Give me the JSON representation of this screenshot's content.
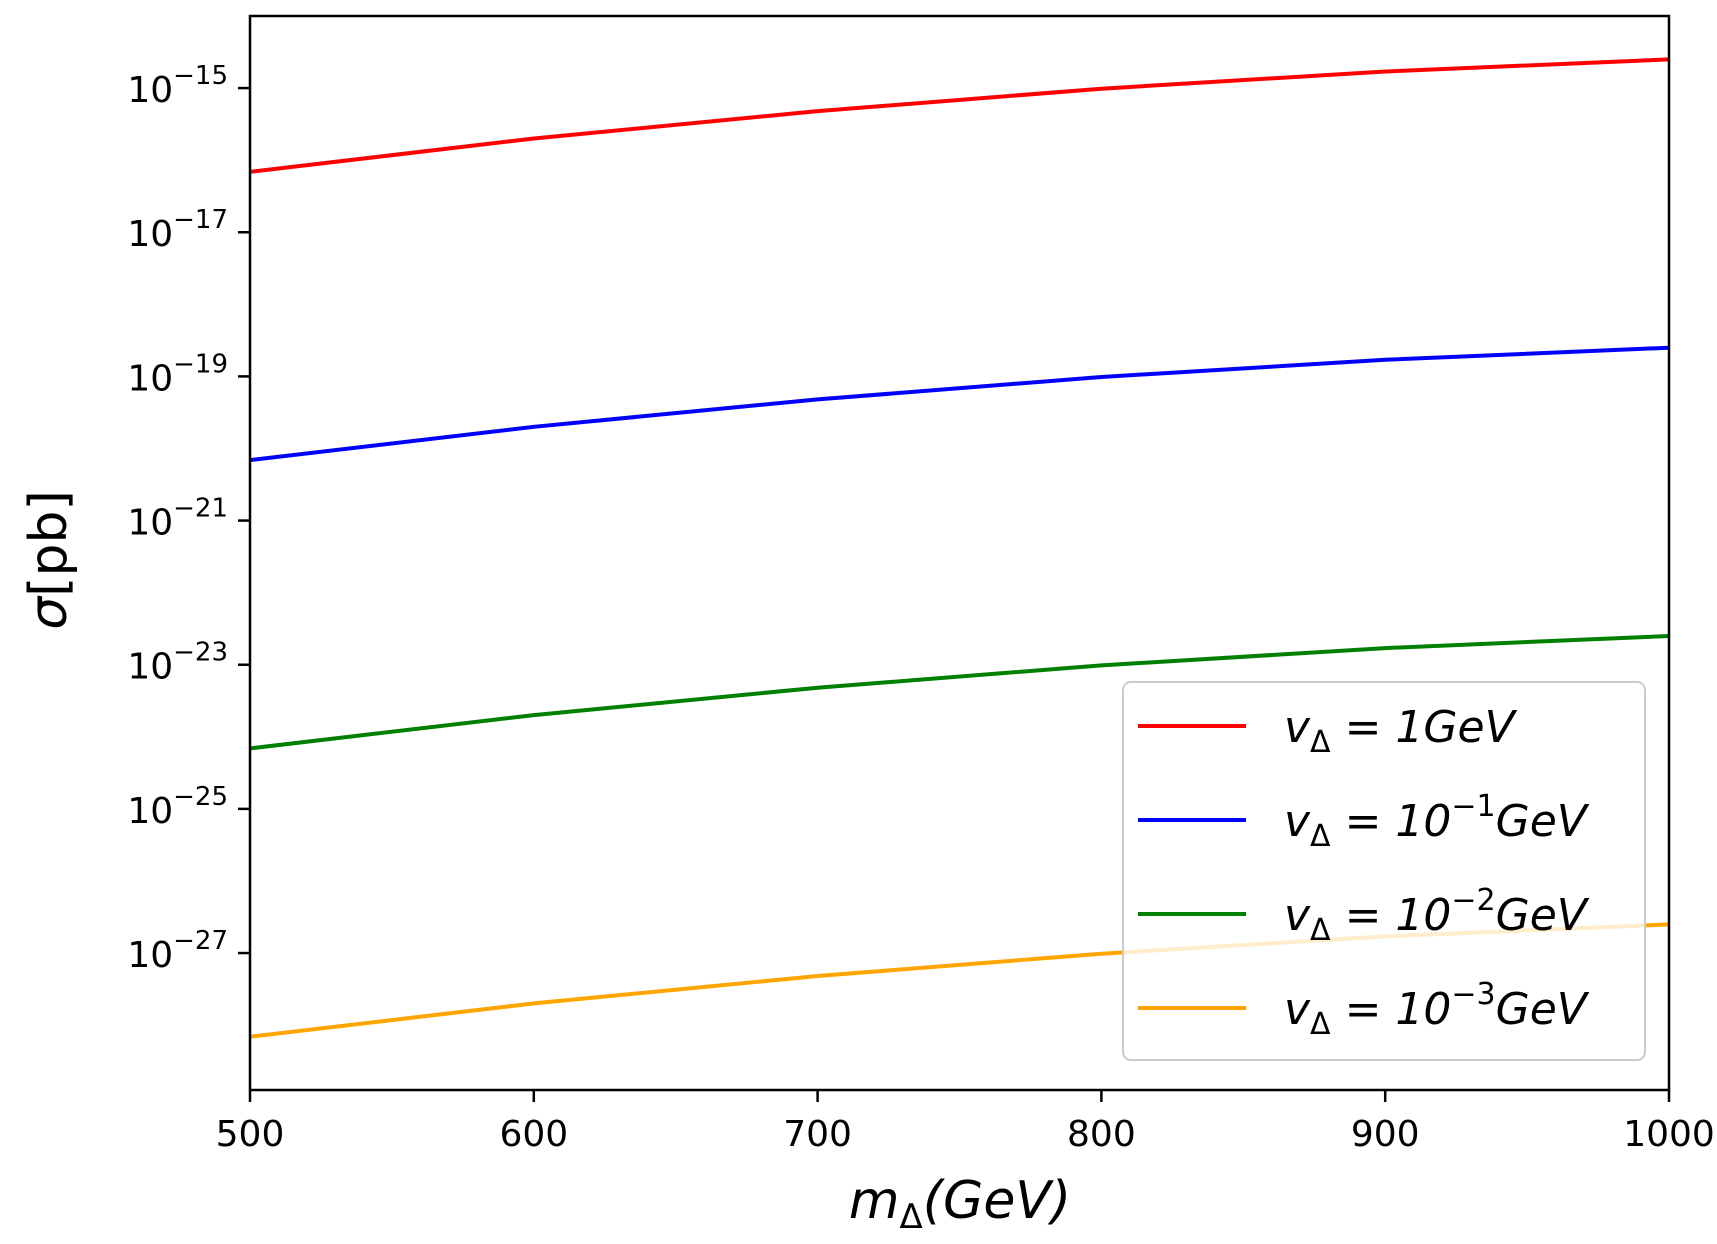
{
  "chart_data": {
    "type": "line",
    "xlabel": "m_Δ(GeV)",
    "ylabel": "σ[pb]",
    "xlim": [
      500,
      1000
    ],
    "ylim_log10": [
      -28.9,
      -14
    ],
    "yscale": "log",
    "x_ticks": [
      {
        "value": 500,
        "label": "500"
      },
      {
        "value": 600,
        "label": "600"
      },
      {
        "value": 700,
        "label": "700"
      },
      {
        "value": 800,
        "label": "800"
      },
      {
        "value": 900,
        "label": "900"
      },
      {
        "value": 1000,
        "label": "1000"
      }
    ],
    "y_ticks": [
      {
        "exp": -15,
        "base": "10",
        "sup": "−15"
      },
      {
        "exp": -17,
        "base": "10",
        "sup": "−17"
      },
      {
        "exp": -19,
        "base": "10",
        "sup": "−19"
      },
      {
        "exp": -21,
        "base": "10",
        "sup": "−21"
      },
      {
        "exp": -23,
        "base": "10",
        "sup": "−23"
      },
      {
        "exp": -25,
        "base": "10",
        "sup": "−25"
      },
      {
        "exp": -27,
        "base": "10",
        "sup": "−27"
      }
    ],
    "x": [
      500,
      600,
      700,
      800,
      900,
      1000
    ],
    "series": [
      {
        "name": "v_Δ = 1GeV",
        "color": "#ff0000",
        "values": [
          6.9e-17,
          2e-16,
          4.8e-16,
          9.8e-16,
          1.7e-15,
          2.5e-15
        ]
      },
      {
        "name": "v_Δ = 10^-1 GeV",
        "color": "#0000ff",
        "values": [
          6.9e-21,
          2e-20,
          4.8e-20,
          9.8e-20,
          1.7e-19,
          2.5e-19
        ]
      },
      {
        "name": "v_Δ = 10^-2 GeV",
        "color": "#008000",
        "values": [
          6.9e-25,
          2e-24,
          4.8e-24,
          9.8e-24,
          1.7e-23,
          2.5e-23
        ]
      },
      {
        "name": "v_Δ = 10^-3 GeV",
        "color": "#ffa500",
        "values": [
          6.9e-29,
          2e-28,
          4.8e-28,
          9.8e-28,
          1.7e-27,
          2.5e-27
        ]
      }
    ],
    "legend": {
      "placement": "lower-right",
      "entries": [
        {
          "prefix": "v",
          "sub": "Δ",
          "mid": " = 1GeV",
          "sup": "",
          "suffix": ""
        },
        {
          "prefix": "v",
          "sub": "Δ",
          "mid": " = 10",
          "sup": "−1",
          "suffix": "GeV"
        },
        {
          "prefix": "v",
          "sub": "Δ",
          "mid": " = 10",
          "sup": "−2",
          "suffix": "GeV"
        },
        {
          "prefix": "v",
          "sub": "Δ",
          "mid": " = 10",
          "sup": "−3",
          "suffix": "GeV"
        }
      ]
    },
    "grid": false
  },
  "axis_text": {
    "x_main": "m",
    "x_sub": "Δ",
    "x_rest": "(GeV)",
    "y_main": "σ",
    "y_rest": "[pb]"
  }
}
